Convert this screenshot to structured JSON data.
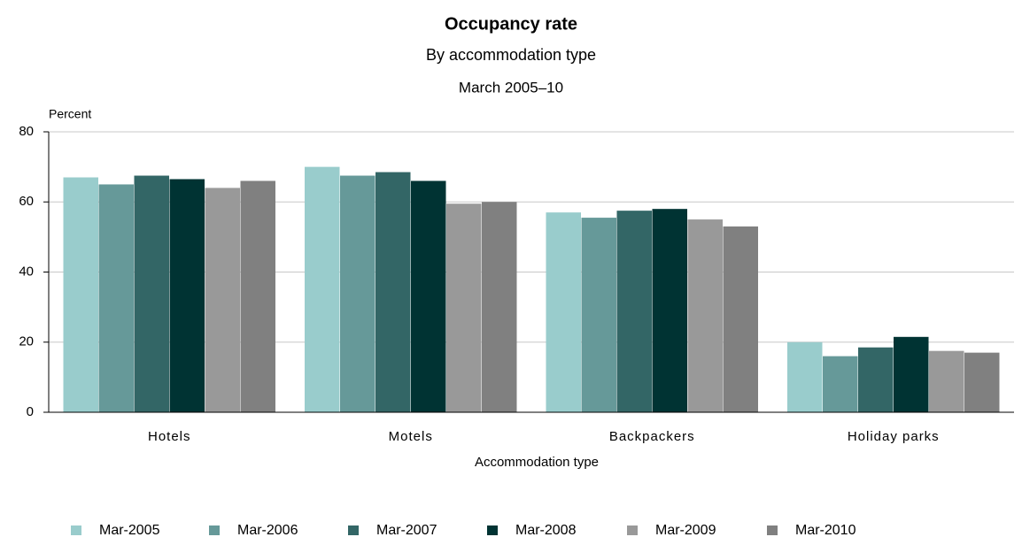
{
  "chart_data": {
    "type": "bar",
    "title": "Occupancy rate",
    "subtitle": "By accommodation type",
    "subtitle2": "March 2005–10",
    "y_label": "Percent",
    "x_label": "Accommodation type",
    "categories": [
      "Hotels",
      "Motels",
      "Backpackers",
      "Holiday parks"
    ],
    "series": [
      {
        "name": "Mar-2005",
        "color": "#99cccc",
        "values": [
          67,
          70,
          57,
          20
        ]
      },
      {
        "name": "Mar-2006",
        "color": "#669999",
        "values": [
          65,
          67.5,
          55.5,
          16
        ]
      },
      {
        "name": "Mar-2007",
        "color": "#336666",
        "values": [
          67.5,
          68.5,
          57.5,
          18.5
        ]
      },
      {
        "name": "Mar-2008",
        "color": "#003333",
        "values": [
          66.5,
          66,
          58,
          21.5
        ]
      },
      {
        "name": "Mar-2009",
        "color": "#999999",
        "values": [
          64,
          59.5,
          55,
          17.5
        ]
      },
      {
        "name": "Mar-2010",
        "color": "#808080",
        "values": [
          66,
          60,
          53,
          17
        ]
      }
    ],
    "ylim": [
      0,
      80
    ],
    "yticks": [
      0,
      20,
      40,
      60,
      80
    ],
    "grid": true
  }
}
